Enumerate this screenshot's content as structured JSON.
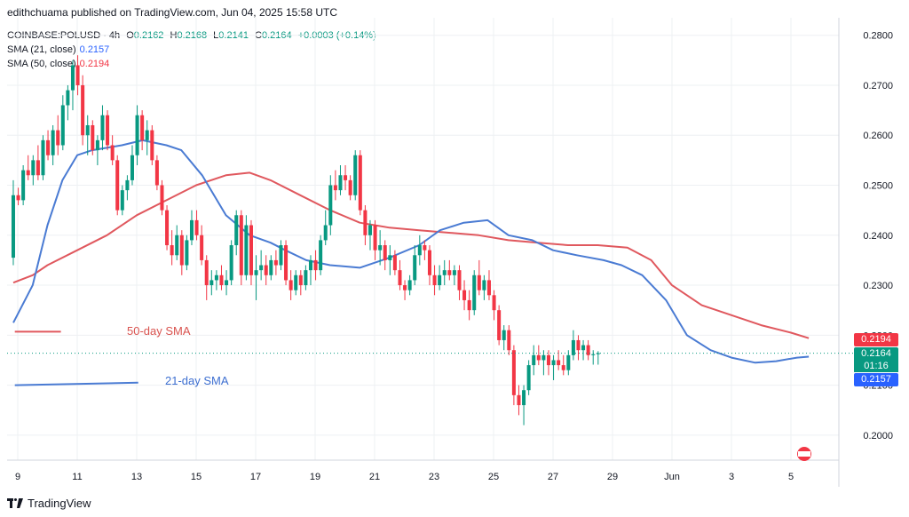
{
  "publisher": "edithchuama published on TradingView.com, Jun 04, 2025 15:58 UTC",
  "legend": {
    "symbol": "COINBASE:POLUSD · 4h",
    "open_label": "O",
    "open": "0.2162",
    "high_label": "H",
    "high": "0.2168",
    "low_label": "L",
    "low": "0.2141",
    "close_label": "C",
    "close": "0.2164",
    "change": "+0.0003 (+0.14%)",
    "sma21_label": "SMA (21, close)",
    "sma21_value": "0.2157",
    "sma50_label": "SMA (50, close)",
    "sma50_value": "0.2194"
  },
  "brand": "TradingView",
  "price_tags": {
    "sma50": "0.2194",
    "last": "0.2164",
    "countdown": "01:16",
    "sma21": "0.2157"
  },
  "annotations": {
    "sma50_label": "50-day SMA",
    "sma21_label": "21-day SMA"
  },
  "colors": {
    "up": "#089981",
    "down": "#f23645",
    "sma21": "#4a7bd3",
    "sma50": "#e0585e",
    "grid": "#eef0f3",
    "axis_text": "#131722"
  },
  "chart_data": {
    "type": "candlestick",
    "ylim": [
      0.195,
      0.2835
    ],
    "y_ticks": [
      "0.2000",
      "0.2100",
      "0.2200",
      "0.2300",
      "0.2400",
      "0.2500",
      "0.2600",
      "0.2700",
      "0.2800"
    ],
    "x_ticks": [
      "9",
      "11",
      "13",
      "15",
      "17",
      "19",
      "21",
      "23",
      "25",
      "27",
      "29",
      "Jun",
      "3",
      "5"
    ],
    "bars_per_day": 6,
    "x_start_day": 8.85,
    "candles": [
      [
        0.2355,
        0.251,
        0.234,
        0.248
      ],
      [
        0.248,
        0.2495,
        0.246,
        0.247
      ],
      [
        0.247,
        0.254,
        0.246,
        0.253
      ],
      [
        0.253,
        0.256,
        0.251,
        0.252
      ],
      [
        0.252,
        0.256,
        0.25,
        0.255
      ],
      [
        0.255,
        0.258,
        0.251,
        0.252
      ],
      [
        0.252,
        0.26,
        0.251,
        0.259
      ],
      [
        0.259,
        0.261,
        0.255,
        0.256
      ],
      [
        0.256,
        0.262,
        0.254,
        0.261
      ],
      [
        0.261,
        0.264,
        0.256,
        0.258
      ],
      [
        0.258,
        0.268,
        0.257,
        0.266
      ],
      [
        0.266,
        0.27,
        0.263,
        0.269
      ],
      [
        0.269,
        0.275,
        0.265,
        0.274
      ],
      [
        0.274,
        0.276,
        0.268,
        0.27
      ],
      [
        0.27,
        0.272,
        0.258,
        0.26
      ],
      [
        0.26,
        0.264,
        0.256,
        0.262
      ],
      [
        0.262,
        0.263,
        0.256,
        0.257
      ],
      [
        0.257,
        0.26,
        0.254,
        0.259
      ],
      [
        0.259,
        0.266,
        0.257,
        0.264
      ],
      [
        0.264,
        0.265,
        0.257,
        0.258
      ],
      [
        0.258,
        0.26,
        0.254,
        0.255
      ],
      [
        0.255,
        0.256,
        0.244,
        0.245
      ],
      [
        0.245,
        0.25,
        0.244,
        0.249
      ],
      [
        0.249,
        0.252,
        0.247,
        0.251
      ],
      [
        0.251,
        0.258,
        0.25,
        0.256
      ],
      [
        0.256,
        0.266,
        0.254,
        0.264
      ],
      [
        0.264,
        0.265,
        0.257,
        0.259
      ],
      [
        0.259,
        0.263,
        0.256,
        0.261
      ],
      [
        0.261,
        0.262,
        0.254,
        0.255
      ],
      [
        0.255,
        0.256,
        0.249,
        0.25
      ],
      [
        0.25,
        0.251,
        0.244,
        0.245
      ],
      [
        0.245,
        0.246,
        0.237,
        0.238
      ],
      [
        0.238,
        0.241,
        0.234,
        0.236
      ],
      [
        0.236,
        0.242,
        0.235,
        0.24
      ],
      [
        0.24,
        0.241,
        0.232,
        0.234
      ],
      [
        0.234,
        0.24,
        0.233,
        0.239
      ],
      [
        0.239,
        0.245,
        0.238,
        0.243
      ],
      [
        0.243,
        0.245,
        0.239,
        0.24
      ],
      [
        0.24,
        0.242,
        0.234,
        0.235
      ],
      [
        0.235,
        0.236,
        0.227,
        0.23
      ],
      [
        0.23,
        0.233,
        0.228,
        0.231
      ],
      [
        0.231,
        0.233,
        0.229,
        0.232
      ],
      [
        0.232,
        0.234,
        0.229,
        0.23
      ],
      [
        0.23,
        0.233,
        0.228,
        0.231
      ],
      [
        0.231,
        0.239,
        0.23,
        0.238
      ],
      [
        0.238,
        0.245,
        0.236,
        0.244
      ],
      [
        0.244,
        0.245,
        0.23,
        0.232
      ],
      [
        0.232,
        0.244,
        0.231,
        0.242
      ],
      [
        0.242,
        0.243,
        0.23,
        0.232
      ],
      [
        0.232,
        0.236,
        0.227,
        0.233
      ],
      [
        0.233,
        0.237,
        0.231,
        0.234
      ],
      [
        0.234,
        0.236,
        0.23,
        0.232
      ],
      [
        0.232,
        0.236,
        0.231,
        0.235
      ],
      [
        0.235,
        0.237,
        0.232,
        0.234
      ],
      [
        0.234,
        0.239,
        0.233,
        0.238
      ],
      [
        0.238,
        0.239,
        0.23,
        0.231
      ],
      [
        0.231,
        0.233,
        0.227,
        0.229
      ],
      [
        0.229,
        0.233,
        0.228,
        0.232
      ],
      [
        0.232,
        0.233,
        0.228,
        0.23
      ],
      [
        0.23,
        0.234,
        0.229,
        0.233
      ],
      [
        0.233,
        0.236,
        0.23,
        0.235
      ],
      [
        0.235,
        0.237,
        0.231,
        0.233
      ],
      [
        0.233,
        0.24,
        0.232,
        0.239
      ],
      [
        0.239,
        0.245,
        0.238,
        0.242
      ],
      [
        0.242,
        0.252,
        0.24,
        0.25
      ],
      [
        0.25,
        0.253,
        0.247,
        0.249
      ],
      [
        0.249,
        0.254,
        0.248,
        0.252
      ],
      [
        0.252,
        0.254,
        0.249,
        0.251
      ],
      [
        0.251,
        0.252,
        0.247,
        0.248
      ],
      [
        0.248,
        0.257,
        0.247,
        0.256
      ],
      [
        0.256,
        0.257,
        0.244,
        0.245
      ],
      [
        0.245,
        0.246,
        0.238,
        0.24
      ],
      [
        0.24,
        0.243,
        0.237,
        0.242
      ],
      [
        0.242,
        0.243,
        0.235,
        0.237
      ],
      [
        0.237,
        0.241,
        0.234,
        0.238
      ],
      [
        0.238,
        0.239,
        0.233,
        0.235
      ],
      [
        0.235,
        0.238,
        0.232,
        0.236
      ],
      [
        0.236,
        0.237,
        0.232,
        0.233
      ],
      [
        0.233,
        0.235,
        0.229,
        0.23
      ],
      [
        0.23,
        0.231,
        0.227,
        0.229
      ],
      [
        0.229,
        0.232,
        0.228,
        0.231
      ],
      [
        0.231,
        0.238,
        0.23,
        0.236
      ],
      [
        0.236,
        0.24,
        0.234,
        0.238
      ],
      [
        0.238,
        0.239,
        0.235,
        0.237
      ],
      [
        0.237,
        0.238,
        0.23,
        0.232
      ],
      [
        0.232,
        0.234,
        0.228,
        0.23
      ],
      [
        0.23,
        0.234,
        0.229,
        0.232
      ],
      [
        0.232,
        0.235,
        0.23,
        0.233
      ],
      [
        0.233,
        0.235,
        0.231,
        0.232
      ],
      [
        0.232,
        0.234,
        0.23,
        0.233
      ],
      [
        0.233,
        0.234,
        0.227,
        0.229
      ],
      [
        0.229,
        0.231,
        0.225,
        0.227
      ],
      [
        0.227,
        0.229,
        0.223,
        0.225
      ],
      [
        0.225,
        0.233,
        0.224,
        0.232
      ],
      [
        0.232,
        0.235,
        0.228,
        0.229
      ],
      [
        0.229,
        0.232,
        0.227,
        0.231
      ],
      [
        0.231,
        0.233,
        0.227,
        0.228
      ],
      [
        0.228,
        0.229,
        0.223,
        0.225
      ],
      [
        0.225,
        0.226,
        0.218,
        0.219
      ],
      [
        0.219,
        0.222,
        0.217,
        0.221
      ],
      [
        0.221,
        0.222,
        0.216,
        0.217
      ],
      [
        0.217,
        0.218,
        0.206,
        0.208
      ],
      [
        0.208,
        0.21,
        0.204,
        0.206
      ],
      [
        0.206,
        0.21,
        0.202,
        0.209
      ],
      [
        0.209,
        0.215,
        0.208,
        0.214
      ],
      [
        0.214,
        0.218,
        0.212,
        0.216
      ],
      [
        0.216,
        0.218,
        0.214,
        0.215
      ],
      [
        0.215,
        0.217,
        0.212,
        0.216
      ],
      [
        0.216,
        0.217,
        0.212,
        0.214
      ],
      [
        0.214,
        0.216,
        0.211,
        0.215
      ],
      [
        0.215,
        0.217,
        0.213,
        0.214
      ],
      [
        0.214,
        0.216,
        0.212,
        0.213
      ],
      [
        0.213,
        0.217,
        0.212,
        0.216
      ],
      [
        0.216,
        0.221,
        0.215,
        0.219
      ],
      [
        0.219,
        0.22,
        0.215,
        0.217
      ],
      [
        0.217,
        0.219,
        0.215,
        0.218
      ],
      [
        0.218,
        0.219,
        0.215,
        0.216
      ],
      [
        0.216,
        0.217,
        0.2141,
        0.2162
      ],
      [
        0.2162,
        0.2168,
        0.2141,
        0.2164
      ]
    ],
    "sma21": [
      [
        8.85,
        0.2225
      ],
      [
        9.5,
        0.23
      ],
      [
        10.0,
        0.242
      ],
      [
        10.5,
        0.251
      ],
      [
        11.0,
        0.256
      ],
      [
        11.5,
        0.257
      ],
      [
        12.5,
        0.258
      ],
      [
        13.2,
        0.259
      ],
      [
        14.0,
        0.258
      ],
      [
        14.5,
        0.257
      ],
      [
        15.2,
        0.252
      ],
      [
        16.0,
        0.244
      ],
      [
        16.8,
        0.24
      ],
      [
        17.5,
        0.2385
      ],
      [
        18.0,
        0.237
      ],
      [
        18.7,
        0.235
      ],
      [
        19.5,
        0.234
      ],
      [
        20.5,
        0.2335
      ],
      [
        21.5,
        0.2355
      ],
      [
        22.5,
        0.238
      ],
      [
        23.2,
        0.241
      ],
      [
        24.0,
        0.2425
      ],
      [
        24.8,
        0.243
      ],
      [
        25.5,
        0.24
      ],
      [
        26.3,
        0.239
      ],
      [
        27.0,
        0.237
      ],
      [
        27.8,
        0.236
      ],
      [
        28.7,
        0.235
      ],
      [
        29.3,
        0.234
      ],
      [
        30.0,
        0.232
      ],
      [
        30.8,
        0.227
      ],
      [
        31.5,
        0.22
      ],
      [
        32.3,
        0.217
      ],
      [
        33.0,
        0.2155
      ],
      [
        33.8,
        0.2145
      ],
      [
        34.5,
        0.2148
      ],
      [
        35.2,
        0.2155
      ],
      [
        35.6,
        0.2157
      ]
    ],
    "sma50": [
      [
        8.85,
        0.2305
      ],
      [
        9.5,
        0.232
      ],
      [
        10.0,
        0.234
      ],
      [
        11.0,
        0.237
      ],
      [
        12.0,
        0.24
      ],
      [
        13.0,
        0.244
      ],
      [
        14.0,
        0.247
      ],
      [
        15.0,
        0.25
      ],
      [
        16.0,
        0.252
      ],
      [
        16.8,
        0.2525
      ],
      [
        17.5,
        0.251
      ],
      [
        18.5,
        0.248
      ],
      [
        19.5,
        0.245
      ],
      [
        20.5,
        0.2425
      ],
      [
        21.5,
        0.2415
      ],
      [
        22.5,
        0.241
      ],
      [
        23.5,
        0.2405
      ],
      [
        24.5,
        0.24
      ],
      [
        25.5,
        0.239
      ],
      [
        26.5,
        0.2385
      ],
      [
        27.5,
        0.238
      ],
      [
        28.5,
        0.238
      ],
      [
        29.5,
        0.2375
      ],
      [
        30.3,
        0.235
      ],
      [
        31.0,
        0.23
      ],
      [
        32.0,
        0.226
      ],
      [
        33.0,
        0.224
      ],
      [
        34.0,
        0.222
      ],
      [
        35.0,
        0.2205
      ],
      [
        35.6,
        0.2194
      ]
    ],
    "legend_sample_sma50": [
      [
        8.9,
        0.2207
      ],
      [
        10.45,
        0.2207
      ]
    ],
    "legend_sample_sma21": [
      [
        8.9,
        0.21
      ],
      [
        13.05,
        0.2105
      ]
    ],
    "last_price": 0.2164
  }
}
